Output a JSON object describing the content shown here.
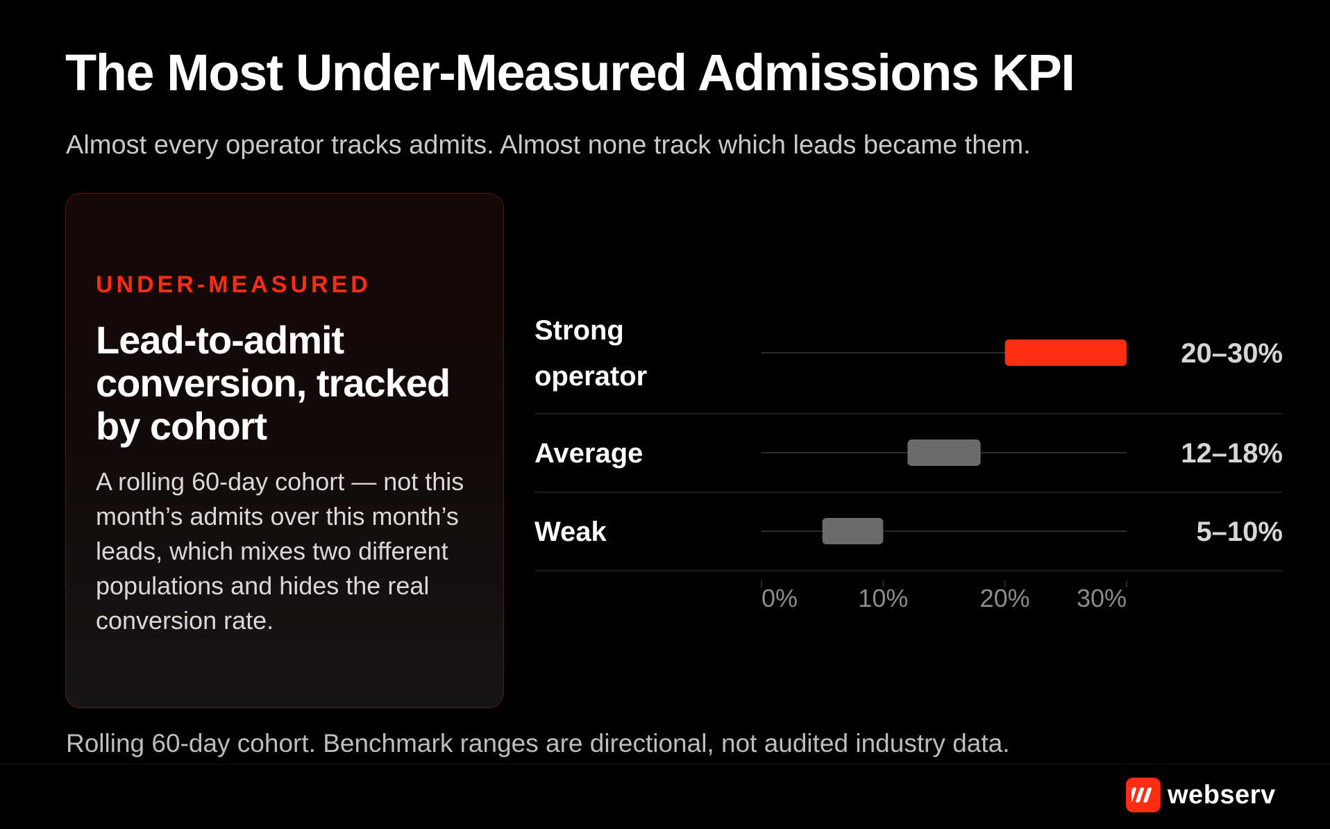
{
  "title": "The Most Under-Measured Admissions KPI",
  "subtitle": "Almost every operator tracks admits. Almost none track which leads became them.",
  "card": {
    "tag": "UNDER-MEASURED",
    "headline": "Lead-to-admit conversion, tracked by cohort",
    "body": "A rolling 60-day cohort — not this month’s admits over this month’s leads, which mixes two different populations and hides the real conversion rate."
  },
  "chart_data": {
    "type": "bar",
    "orientation": "horizontal-range",
    "categories": [
      [
        "Strong",
        "operator"
      ],
      [
        "Average"
      ],
      [
        "Weak"
      ]
    ],
    "ranges": [
      {
        "low": 20,
        "high": 30,
        "label": "20–30%",
        "color": "#ff2d14"
      },
      {
        "low": 12,
        "high": 18,
        "label": "12–18%",
        "color": "#6b6b6b"
      },
      {
        "low": 5,
        "high": 10,
        "label": "5–10%",
        "color": "#6b6b6b"
      }
    ],
    "xlim": [
      0,
      30
    ],
    "xticks": [
      {
        "value": 0,
        "label": "0%"
      },
      {
        "value": 10,
        "label": "10%"
      },
      {
        "value": 20,
        "label": "20%"
      },
      {
        "value": 30,
        "label": "30%"
      }
    ],
    "unit": "%"
  },
  "footnote": "Rolling 60-day cohort. Benchmark ranges are directional, not audited industry data.",
  "brand": {
    "name": "webserv",
    "mark_icon": "webserv-logo-icon",
    "accent": "#ff2d14"
  },
  "colors": {
    "background": "#000000",
    "accent": "#ff2d14",
    "muted_bar": "#6b6b6b",
    "track": "#2a2a2a"
  }
}
